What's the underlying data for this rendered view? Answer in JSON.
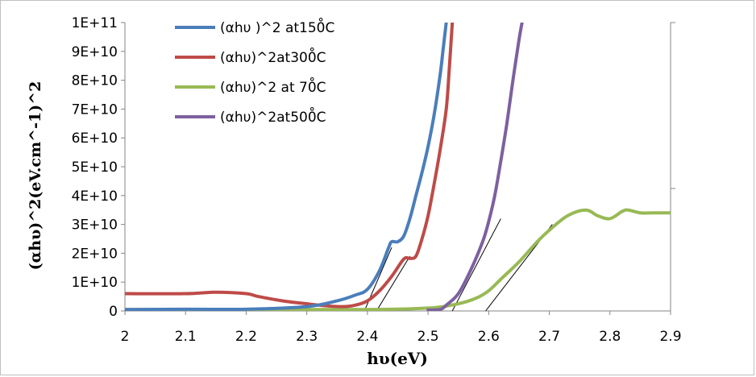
{
  "chart_data": {
    "type": "line",
    "xlabel": "hυ(eV)",
    "ylabel": "(αhυ)^2(eV.cm^-1)^2",
    "xlim": [
      2,
      2.9
    ],
    "ylim": [
      0,
      100000000000
    ],
    "x_ticks": [
      "2",
      "2.1",
      "2.2",
      "2.3",
      "2.4",
      "2.5",
      "2.6",
      "2.7",
      "2.8",
      "2.9"
    ],
    "y_ticks": [
      "0",
      "1E+10",
      "2E+10",
      "3E+10",
      "4E+10",
      "5E+10",
      "6E+10",
      "7E+10",
      "8E+10",
      "9E+10",
      "1E+11"
    ],
    "legend_position": "top-left",
    "series": [
      {
        "name": "(αhυ )^2 at150̊C",
        "color": "#4a7ebb",
        "x": [
          2.0,
          2.1,
          2.2,
          2.3,
          2.35,
          2.38,
          2.4,
          2.42,
          2.435,
          2.44,
          2.45,
          2.46,
          2.47,
          2.48,
          2.49,
          2.5,
          2.51,
          2.52,
          2.525,
          2.53
        ],
        "y": [
          500000000.0,
          600000000.0,
          600000000.0,
          1500000000.0,
          3500000000.0,
          5500000000.0,
          7500000000.0,
          14000000000.0,
          22000000000.0,
          24000000000.0,
          24000000000.0,
          26000000000.0,
          32000000000.0,
          40000000000.0,
          48000000000.0,
          57000000000.0,
          68000000000.0,
          82000000000.0,
          91000000000.0,
          100000000000.0
        ]
      },
      {
        "name": "(αhυ)^2at300̊C",
        "color": "#be4b48",
        "x": [
          2.0,
          2.1,
          2.15,
          2.2,
          2.22,
          2.26,
          2.3,
          2.33,
          2.36,
          2.38,
          2.4,
          2.42,
          2.44,
          2.46,
          2.47,
          2.48,
          2.49,
          2.5,
          2.51,
          2.52,
          2.53,
          2.535,
          2.54
        ],
        "y": [
          6000000000.0,
          6000000000.0,
          6500000000.0,
          6000000000.0,
          5000000000.0,
          3500000000.0,
          2500000000.0,
          1800000000.0,
          1500000000.0,
          2000000000.0,
          3500000000.0,
          7000000000.0,
          12000000000.0,
          18000000000.0,
          18200000000.0,
          19000000000.0,
          25000000000.0,
          33000000000.0,
          44000000000.0,
          56000000000.0,
          70000000000.0,
          84000000000.0,
          100000000000.0
        ]
      },
      {
        "name": "(αhυ)^2 at 70̊C",
        "color": "#98b954",
        "x": [
          2.0,
          2.2,
          2.4,
          2.5,
          2.55,
          2.58,
          2.6,
          2.62,
          2.65,
          2.68,
          2.7,
          2.73,
          2.76,
          2.78,
          2.8,
          2.82,
          2.83,
          2.85,
          2.87,
          2.9
        ],
        "y": [
          500000000.0,
          500000000.0,
          500000000.0,
          1000000000.0,
          2500000000.0,
          4500000000.0,
          7000000000.0,
          11000000000.0,
          17000000000.0,
          24000000000.0,
          28000000000.0,
          33000000000.0,
          35000000000.0,
          33000000000.0,
          32000000000.0,
          34500000000.0,
          35000000000.0,
          34000000000.0,
          34000000000.0,
          34000000000.0
        ]
      },
      {
        "name": "(αhυ)^2at500̊C",
        "color": "#7d60a0",
        "x": [
          2.5,
          2.52,
          2.53,
          2.55,
          2.57,
          2.59,
          2.6,
          2.61,
          2.62,
          2.63,
          2.64,
          2.65,
          2.655
        ],
        "y": [
          300000000.0,
          500000000.0,
          2000000000.0,
          6000000000.0,
          14000000000.0,
          24000000000.0,
          31000000000.0,
          40000000000.0,
          52000000000.0,
          65000000000.0,
          80000000000.0,
          94000000000.0,
          100000000000.0
        ]
      }
    ],
    "tangent_lines": [
      {
        "x": [
          2.395,
          2.44
        ],
        "y": [
          0,
          22000000000
        ]
      },
      {
        "x": [
          2.415,
          2.47
        ],
        "y": [
          0,
          19000000000
        ]
      },
      {
        "x": [
          2.54,
          2.62
        ],
        "y": [
          0,
          32000000000
        ]
      },
      {
        "x": [
          2.595,
          2.705
        ],
        "y": [
          0,
          30000000000
        ]
      }
    ]
  }
}
